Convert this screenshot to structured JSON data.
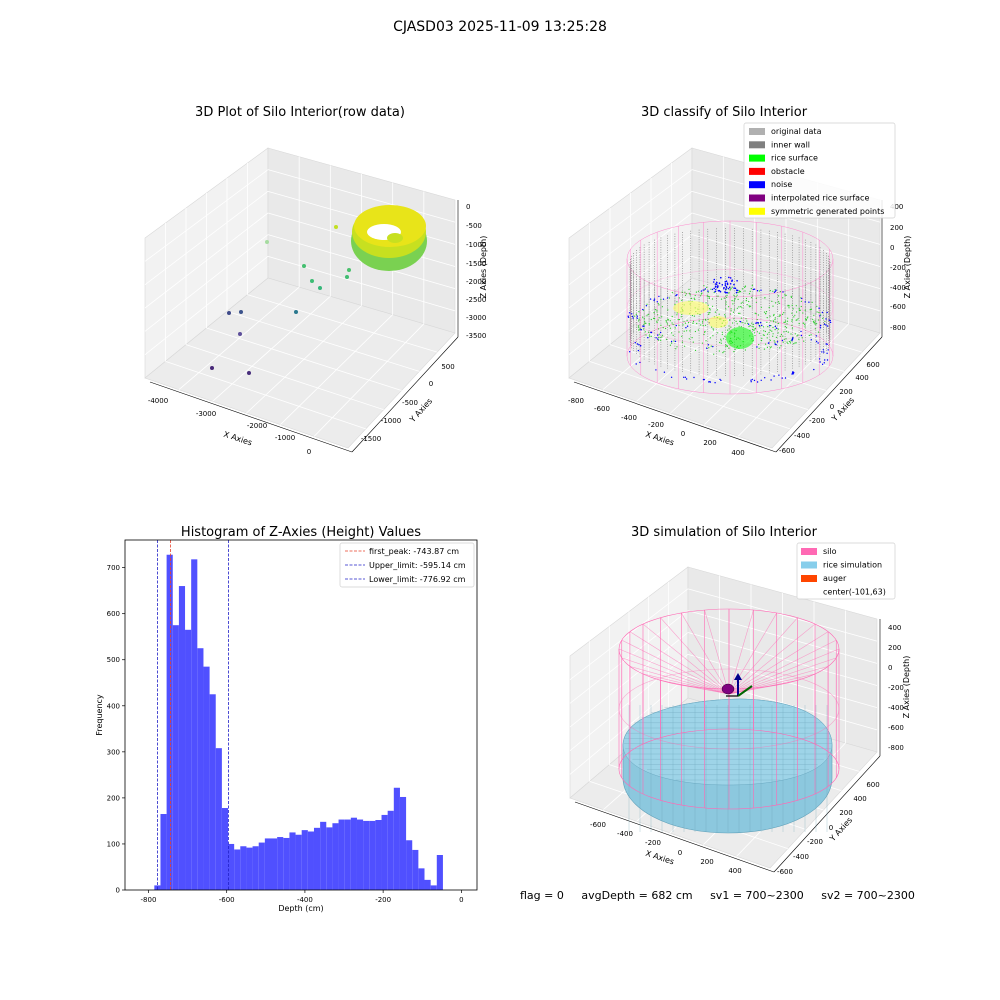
{
  "figure_title": "CJASD03 2025-11-09 13:25:28",
  "status": {
    "flag": "flag = 0",
    "avg_depth": "avgDepth = 682 cm",
    "sv1": "sv1 = 700~2300",
    "sv2": "sv2 = 700~2300"
  },
  "chart_data": [
    {
      "type": "scatter",
      "title": "3D Plot of Silo Interior(row data)",
      "xlabel": "X Axies",
      "ylabel": "Y Axies",
      "zlabel": "Z Axies (Depth)",
      "x_ticks": [
        "-4000",
        "-3000",
        "-2000",
        "-1000",
        "0"
      ],
      "y_ticks": [
        "500",
        "0",
        "-500",
        "-1000",
        "-1500"
      ],
      "z_ticks": [
        "0",
        "-500",
        "-1000",
        "-1500",
        "-2000",
        "-2500",
        "-3000",
        "-3500"
      ],
      "colormap": "viridis"
    },
    {
      "type": "scatter",
      "title": "3D classify of Silo Interior",
      "xlabel": "X Axies",
      "ylabel": "Y Axies",
      "zlabel": "Z Axies (Depth)",
      "x_ticks": [
        "-800",
        "-600",
        "-400",
        "-200",
        "0",
        "200",
        "400"
      ],
      "y_ticks": [
        "600",
        "400",
        "200",
        "0",
        "-200",
        "-400",
        "-600"
      ],
      "z_ticks": [
        "400",
        "200",
        "0",
        "-200",
        "-400",
        "-600",
        "-800"
      ],
      "legend": [
        {
          "label": "original data",
          "color": "#b0b0b0"
        },
        {
          "label": "inner wall",
          "color": "#808080"
        },
        {
          "label": "rice surface",
          "color": "#00ff00"
        },
        {
          "label": "obstacle",
          "color": "#ff0000"
        },
        {
          "label": "noise",
          "color": "#0000ff"
        },
        {
          "label": "interpolated rice surface",
          "color": "#800080"
        },
        {
          "label": "symmetric generated points",
          "color": "#ffff00"
        }
      ],
      "legend_position": "top-right"
    },
    {
      "type": "bar",
      "title": "Histogram of Z-Axies (Height) Values",
      "xlabel": "Depth (cm)",
      "ylabel": "Frequency",
      "xlim": [
        -860,
        40
      ],
      "ylim": [
        0,
        760
      ],
      "x_ticks": [
        -800,
        -600,
        -400,
        -200,
        0
      ],
      "y_ticks": [
        0,
        100,
        200,
        300,
        400,
        500,
        600,
        700
      ],
      "bin_start": -785,
      "bin_width": 15.7,
      "values": [
        10,
        165,
        728,
        575,
        660,
        565,
        718,
        525,
        485,
        425,
        308,
        178,
        100,
        88,
        95,
        92,
        95,
        103,
        112,
        112,
        115,
        113,
        125,
        120,
        130,
        127,
        135,
        148,
        136,
        145,
        153,
        153,
        157,
        153,
        150,
        150,
        152,
        163,
        172,
        222,
        202,
        108,
        87,
        47,
        22,
        10,
        76
      ],
      "bar_color": "#5050ff",
      "vlines": [
        {
          "label": "first_peak: -743.87 cm",
          "x": -743.87,
          "color": "#e8402a"
        },
        {
          "label": "Upper_limit: -595.14 cm",
          "x": -595.14,
          "color": "#2020c8"
        },
        {
          "label": "Lower_limit: -776.92 cm",
          "x": -776.92,
          "color": "#2020c8"
        }
      ],
      "legend_position": "top-right"
    },
    {
      "type": "scatter",
      "title": "3D simulation of Silo Interior",
      "xlabel": "X Axies",
      "ylabel": "Y Axies",
      "zlabel": "Z Axies (Depth)",
      "x_ticks": [
        "-600",
        "-400",
        "-200",
        "0",
        "200",
        "400"
      ],
      "y_ticks": [
        "600",
        "400",
        "200",
        "0",
        "-200",
        "-400",
        "-600"
      ],
      "z_ticks": [
        "400",
        "200",
        "0",
        "-200",
        "-400",
        "-600",
        "-800"
      ],
      "legend": [
        {
          "label": "silo",
          "color": "#ff69b4"
        },
        {
          "label": "rice simulation",
          "color": "#87ceeb"
        },
        {
          "label": "auger",
          "color": "#ff4500"
        },
        {
          "label": "center(-101,63)",
          "color": ""
        }
      ],
      "legend_position": "top-right"
    }
  ]
}
